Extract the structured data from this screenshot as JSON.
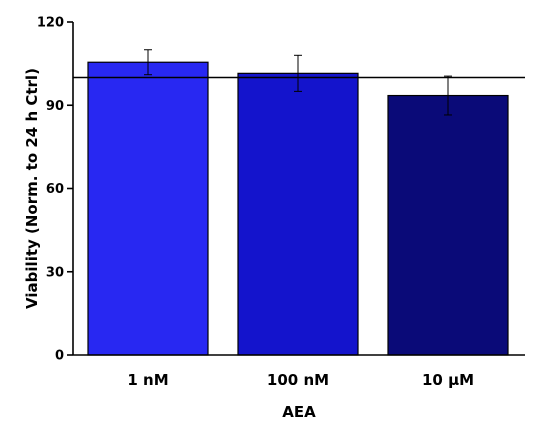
{
  "chart_data": {
    "type": "bar",
    "categories": [
      "1 nM",
      "100 nM",
      "10 µM"
    ],
    "values": [
      105.5,
      101.5,
      93.5
    ],
    "errors": [
      4.5,
      6.5,
      7.0
    ],
    "colors": [
      "#2828f2",
      "#1414cc",
      "#0a0a78"
    ],
    "reference_line": 100,
    "xlabel": "AEA",
    "ylabel": "Viability (Norm. to 24 h Ctrl)",
    "ylim": [
      0,
      120
    ],
    "yticks": [
      0,
      30,
      60,
      90,
      120
    ],
    "grid": false
  }
}
